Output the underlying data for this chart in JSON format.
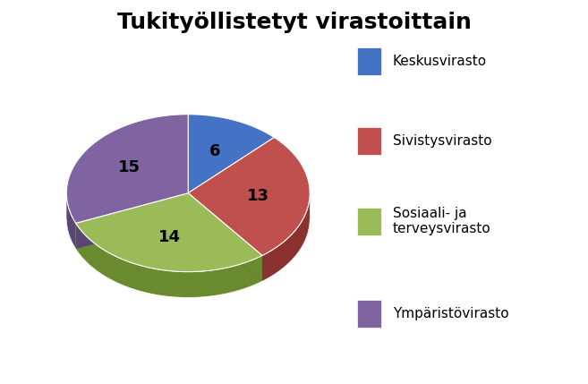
{
  "title": "Tukityöllistetyt virastoittain",
  "labels": [
    "Keskusvirasto",
    "Sivistysvirasto",
    "Sosiaali- ja\nterveysvirasto",
    "Ympäristövirasto"
  ],
  "values": [
    6,
    13,
    14,
    15
  ],
  "colors": [
    "#4472C4",
    "#C0504D",
    "#9BBB59",
    "#8064A2"
  ],
  "dark_colors": [
    "#2E4F8C",
    "#8B3230",
    "#6A8A30",
    "#5A4575"
  ],
  "title_fontsize": 18,
  "label_fontsize": 13,
  "legend_fontsize": 11,
  "background_color": "#FFFFFF",
  "startangle": 90,
  "figsize": [
    6.57,
    4.29
  ],
  "dpi": 100
}
